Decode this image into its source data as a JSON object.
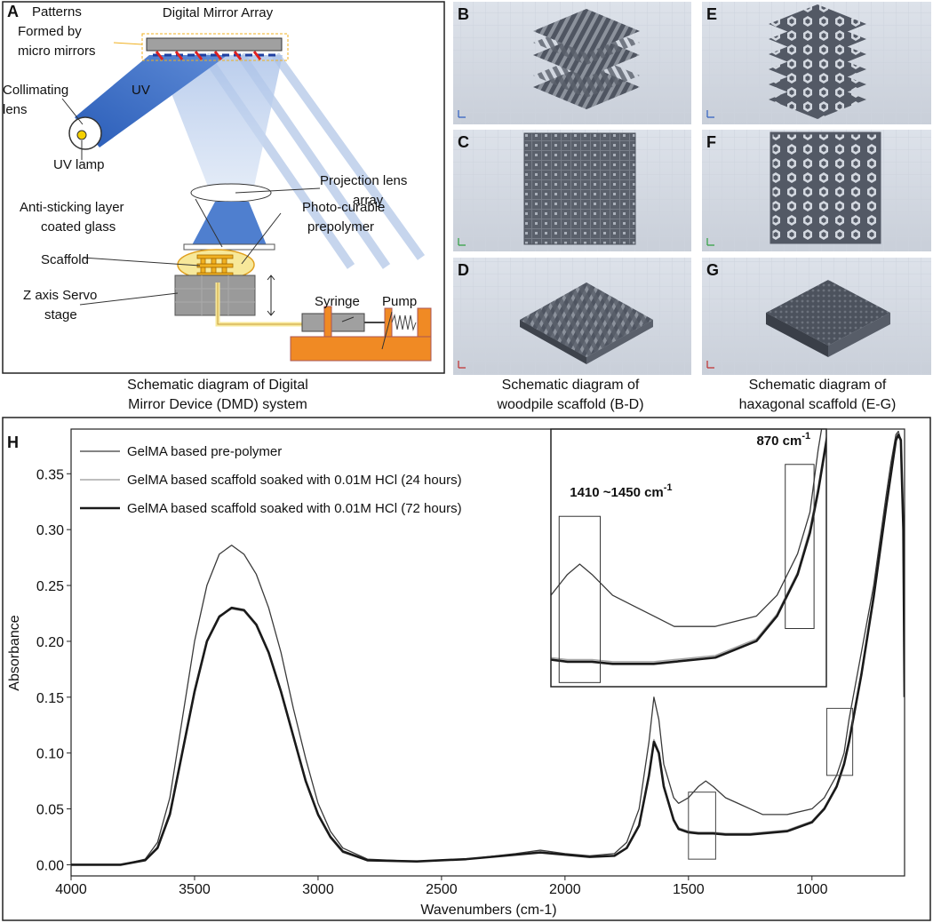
{
  "schematic": {
    "letter": "A",
    "labels": [
      {
        "lines": [
          "Patterns",
          "Formed by",
          "micro mirrors"
        ]
      },
      {
        "lines": [
          "Digital Mirror Array"
        ]
      },
      {
        "lines": [
          "UV"
        ]
      },
      {
        "lines": [
          "Collimating",
          "lens"
        ]
      },
      {
        "lines": [
          "UV lamp"
        ]
      },
      {
        "lines": [
          "Projection lens",
          "array"
        ]
      },
      {
        "lines": [
          "Anti-sticking layer",
          "coated glass"
        ]
      },
      {
        "lines": [
          "Photo-curable",
          "prepolymer"
        ]
      },
      {
        "lines": [
          "Scaffold"
        ]
      },
      {
        "lines": [
          "Z axis Servo",
          "stage"
        ]
      },
      {
        "lines": [
          "Syringe"
        ]
      },
      {
        "lines": [
          "Pump"
        ]
      }
    ]
  },
  "panels": [
    "B",
    "C",
    "D",
    "E",
    "F",
    "G"
  ],
  "captions": [
    [
      "Schematic diagram of Digital",
      "Mirror Device (DMD) system"
    ],
    [
      "Schematic diagram of",
      "woodpile scaffold (B-D)"
    ],
    [
      "Schematic diagram of",
      "haxagonal scaffold (E-G)"
    ]
  ],
  "chart_data": {
    "type": "line",
    "panel_letter": "H",
    "x_label": "Wavenumbers (cm-1)",
    "y_label": "Absorbance",
    "xlim": [
      4000,
      625
    ],
    "ylim": [
      -0.01,
      0.39
    ],
    "xticks": [
      4000,
      3500,
      3000,
      2500,
      2000,
      1500,
      1000
    ],
    "yticks": [
      {
        "value": 0,
        "label": "0.00"
      },
      {
        "value": 0.05,
        "label": "0.05"
      },
      {
        "value": 0.1,
        "label": "0.10"
      },
      {
        "value": 0.15,
        "label": "0.15"
      },
      {
        "value": 0.2,
        "label": "0.20"
      },
      {
        "value": 0.25,
        "label": "0.25"
      },
      {
        "value": 0.3,
        "label": "0.30"
      },
      {
        "value": 0.35,
        "label": "0.35"
      }
    ],
    "legend": "top-left",
    "x": [
      4000,
      3800,
      3700,
      3650,
      3600,
      3550,
      3500,
      3450,
      3400,
      3350,
      3300,
      3250,
      3200,
      3150,
      3100,
      3050,
      3000,
      2950,
      2900,
      2800,
      2600,
      2400,
      2200,
      2100,
      2000,
      1900,
      1800,
      1750,
      1700,
      1660,
      1640,
      1620,
      1600,
      1560,
      1540,
      1500,
      1460,
      1430,
      1400,
      1350,
      1300,
      1250,
      1200,
      1100,
      1000,
      950,
      900,
      870,
      850,
      800,
      750,
      700,
      680,
      660,
      650,
      640,
      630,
      625
    ],
    "series": [
      {
        "name": "GelMA based pre-polymer",
        "color": "#3a3a3a",
        "line_width": 1.3,
        "values": [
          0,
          0,
          0.005,
          0.02,
          0.06,
          0.13,
          0.2,
          0.25,
          0.278,
          0.286,
          0.278,
          0.26,
          0.23,
          0.19,
          0.14,
          0.095,
          0.055,
          0.03,
          0.015,
          0.005,
          0.003,
          0.005,
          0.01,
          0.013,
          0.01,
          0.008,
          0.01,
          0.02,
          0.05,
          0.11,
          0.15,
          0.13,
          0.09,
          0.06,
          0.055,
          0.06,
          0.07,
          0.075,
          0.07,
          0.06,
          0.055,
          0.05,
          0.045,
          0.045,
          0.05,
          0.06,
          0.08,
          0.1,
          0.13,
          0.19,
          0.25,
          0.33,
          0.36,
          0.385,
          0.388,
          0.38,
          0.3,
          0.15
        ]
      },
      {
        "name": "GelMA based scaffold soaked with 0.01M HCl (24 hours)",
        "color": "#a8a8a8",
        "line_width": 1.6,
        "values": [
          0,
          0,
          0.004,
          0.016,
          0.047,
          0.102,
          0.157,
          0.201,
          0.223,
          0.229,
          0.227,
          0.214,
          0.189,
          0.154,
          0.114,
          0.074,
          0.044,
          0.024,
          0.011,
          0.004,
          0.003,
          0.005,
          0.009,
          0.011,
          0.009,
          0.007,
          0.008,
          0.015,
          0.036,
          0.081,
          0.112,
          0.101,
          0.071,
          0.041,
          0.033,
          0.03,
          0.029,
          0.029,
          0.029,
          0.028,
          0.028,
          0.028,
          0.029,
          0.031,
          0.039,
          0.051,
          0.071,
          0.092,
          0.112,
          0.172,
          0.242,
          0.322,
          0.352,
          0.381,
          0.386,
          0.381,
          0.3,
          0.15
        ]
      },
      {
        "name": "GelMA based scaffold soaked with 0.01M HCl (72 hours)",
        "color": "#1a1a1a",
        "line_width": 2.6,
        "values": [
          0,
          0,
          0.004,
          0.015,
          0.045,
          0.1,
          0.155,
          0.2,
          0.222,
          0.23,
          0.228,
          0.215,
          0.19,
          0.155,
          0.115,
          0.075,
          0.045,
          0.025,
          0.012,
          0.004,
          0.003,
          0.005,
          0.009,
          0.011,
          0.009,
          0.007,
          0.008,
          0.015,
          0.035,
          0.08,
          0.11,
          0.1,
          0.07,
          0.04,
          0.032,
          0.029,
          0.028,
          0.028,
          0.028,
          0.027,
          0.027,
          0.027,
          0.028,
          0.03,
          0.038,
          0.05,
          0.07,
          0.09,
          0.11,
          0.17,
          0.24,
          0.32,
          0.35,
          0.38,
          0.385,
          0.38,
          0.3,
          0.15
        ]
      }
    ],
    "highlight_boxes": [
      {
        "xlim": [
          1500,
          1390
        ],
        "ylim": [
          0.005,
          0.065
        ]
      },
      {
        "xlim": [
          940,
          835
        ],
        "ylim": [
          0.08,
          0.14
        ]
      }
    ],
    "inset": {
      "xlim": [
        1500,
        830
      ],
      "ylim": [
        0.016,
        0.14
      ],
      "boxes": [
        {
          "xlim": [
            1480,
            1380
          ],
          "ylim": [
            0.018,
            0.098
          ],
          "text": "1410 ~1450 cm",
          "sup": "-1"
        },
        {
          "xlim": [
            930,
            860
          ],
          "ylim": [
            0.044,
            0.123
          ],
          "text": "870 cm",
          "sup": "-1"
        }
      ]
    }
  }
}
